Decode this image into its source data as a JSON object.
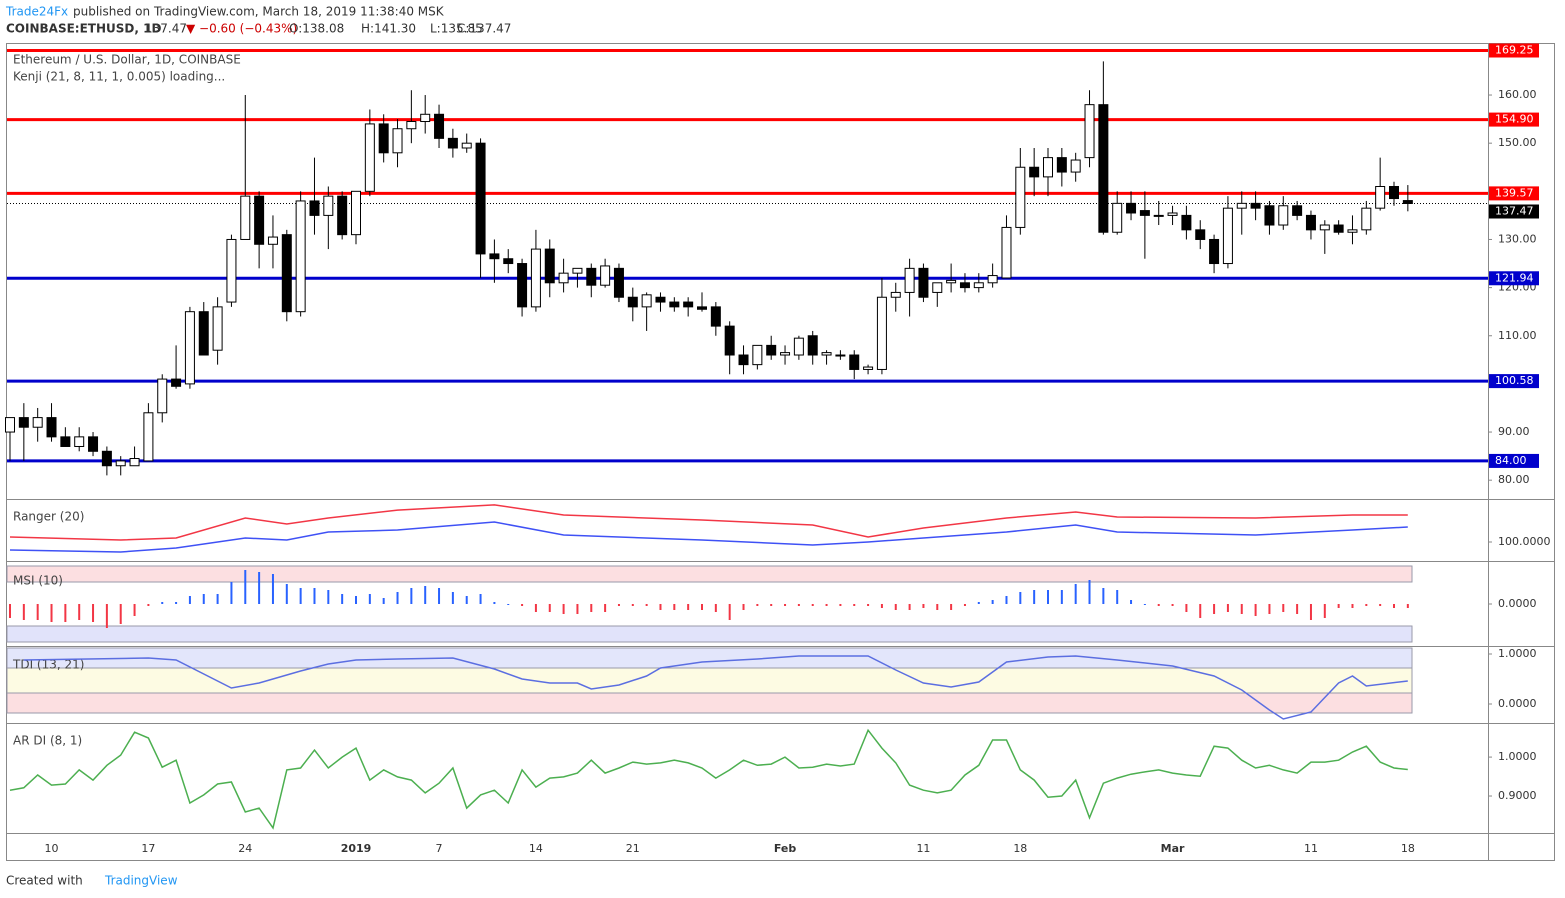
{
  "header": {
    "author": "Trade24Fx",
    "published": " published on TradingView.com, March 18, 2019 11:38:40 MSK",
    "symbol": "COINBASE:ETHUSD, 1D",
    "price": "137.47",
    "change": "▼ −0.60 (−0.43%)",
    "open": "O:138.08",
    "high": "H:141.30",
    "low": "L:135.85",
    "close": "C:137.47"
  },
  "footer": {
    "text": "Created with",
    "brand": "TradingView"
  },
  "chart_data": [
    {
      "type": "candlestick",
      "title": "Ethereum / U.S. Dollar, 1D, COINBASE",
      "subtitle": "Kenji (21, 8, 11, 1, 0.005) loading...",
      "categories": [
        null,
        null,
        null,
        "10",
        null,
        null,
        null,
        null,
        null,
        null,
        "17",
        null,
        null,
        null,
        null,
        null,
        null,
        "24",
        null,
        null,
        null,
        null,
        null,
        null,
        null,
        "2019",
        null,
        null,
        null,
        null,
        null,
        "7",
        null,
        null,
        null,
        null,
        null,
        null,
        "14",
        null,
        null,
        null,
        null,
        null,
        null,
        "21",
        null,
        null,
        null,
        null,
        null,
        null,
        null,
        null,
        null,
        null,
        "Feb",
        null,
        null,
        null,
        null,
        null,
        null,
        null,
        null,
        null,
        "11",
        null,
        null,
        null,
        null,
        null,
        null,
        "18",
        null,
        null,
        null,
        null,
        null,
        null,
        null,
        null,
        null,
        null,
        "Mar",
        null,
        null,
        null,
        null,
        null,
        null,
        null,
        null,
        null,
        "11",
        null,
        null,
        null,
        null,
        null,
        null,
        "18"
      ],
      "ohlc": [
        [
          90,
          93,
          84,
          93
        ],
        [
          93,
          96,
          84,
          91
        ],
        [
          91,
          95,
          88,
          93
        ],
        [
          93,
          96,
          88,
          89
        ],
        [
          89,
          91,
          87,
          87
        ],
        [
          87,
          91,
          86,
          89
        ],
        [
          89,
          90,
          85,
          86
        ],
        [
          86,
          87,
          81,
          83
        ],
        [
          83,
          85,
          81,
          84
        ],
        [
          83,
          87,
          83,
          84.5
        ],
        [
          84,
          96,
          84,
          94
        ],
        [
          94,
          102,
          92,
          101
        ],
        [
          101,
          108,
          99,
          99.5
        ],
        [
          100,
          116,
          99,
          115
        ],
        [
          115,
          117,
          106,
          106
        ],
        [
          107,
          118,
          104,
          116
        ],
        [
          117,
          131,
          116,
          130
        ],
        [
          130,
          160,
          130,
          139
        ],
        [
          139,
          140,
          124,
          129
        ],
        [
          129,
          135,
          124,
          130.5
        ],
        [
          131,
          132,
          113,
          115
        ],
        [
          115,
          140,
          114,
          138
        ],
        [
          138,
          147,
          131,
          135
        ],
        [
          135,
          141,
          128,
          139
        ],
        [
          139,
          140,
          130,
          131
        ],
        [
          131,
          140,
          129,
          140
        ],
        [
          140,
          157,
          139,
          154
        ],
        [
          154,
          156,
          146,
          148
        ],
        [
          148,
          155,
          145,
          153
        ],
        [
          153,
          161,
          150,
          154.5
        ],
        [
          154.5,
          160,
          152,
          156
        ],
        [
          156,
          158,
          149,
          151
        ],
        [
          151,
          153,
          147,
          149
        ],
        [
          149,
          152,
          148,
          150
        ],
        [
          150,
          151,
          122,
          127
        ],
        [
          127,
          130,
          121,
          126
        ],
        [
          126,
          128,
          123,
          125
        ],
        [
          125,
          126,
          114,
          116
        ],
        [
          116,
          132,
          115,
          128
        ],
        [
          128,
          130,
          118,
          121
        ],
        [
          121,
          126,
          119,
          123
        ],
        [
          123,
          124,
          120,
          124
        ],
        [
          124,
          125,
          118,
          120.5
        ],
        [
          120.5,
          126,
          120,
          124.5
        ],
        [
          124,
          125,
          117,
          118
        ],
        [
          118,
          120,
          113,
          116
        ],
        [
          116,
          119,
          111,
          118.5
        ],
        [
          118,
          119,
          115,
          117
        ],
        [
          117,
          118,
          115,
          116
        ],
        [
          117,
          118,
          114,
          116
        ],
        [
          116,
          119,
          115,
          115.5
        ],
        [
          116,
          117,
          110,
          112
        ],
        [
          112,
          113,
          102,
          106
        ],
        [
          106,
          108,
          102,
          104
        ],
        [
          104,
          108,
          103,
          108
        ],
        [
          108,
          110,
          105,
          106
        ],
        [
          106,
          108,
          104,
          106.5
        ],
        [
          106,
          110,
          105,
          109.5
        ],
        [
          110,
          111,
          104,
          106
        ],
        [
          106,
          107,
          104,
          106.5
        ],
        [
          106,
          107,
          105,
          106
        ],
        [
          106,
          107,
          101,
          103
        ],
        [
          103,
          104,
          102,
          103.5
        ],
        [
          103,
          122,
          102,
          118
        ],
        [
          118,
          121,
          115,
          119
        ],
        [
          119,
          126,
          114,
          124
        ],
        [
          124,
          125,
          117,
          118
        ],
        [
          119,
          121,
          116,
          121
        ],
        [
          121,
          125,
          119,
          121.5
        ],
        [
          121,
          123,
          119,
          120
        ],
        [
          120,
          123,
          119,
          121
        ],
        [
          121,
          125,
          120,
          122.5
        ],
        [
          122,
          135,
          122,
          132.5
        ],
        [
          132.5,
          149,
          131,
          145
        ],
        [
          145,
          149,
          139,
          143
        ],
        [
          143,
          149,
          139,
          147
        ],
        [
          147,
          149,
          141,
          144
        ],
        [
          144,
          148,
          142,
          146.5
        ],
        [
          147,
          161,
          145,
          158
        ],
        [
          158,
          167,
          131,
          131.5
        ],
        [
          131.5,
          140,
          131,
          137.5
        ],
        [
          137.5,
          140,
          134,
          135.5
        ],
        [
          136,
          140,
          126,
          135
        ],
        [
          135,
          138,
          133,
          135
        ],
        [
          135,
          137,
          133,
          135.5
        ],
        [
          135,
          137,
          130,
          132
        ],
        [
          132,
          134,
          128,
          130
        ],
        [
          130,
          131,
          123,
          125
        ],
        [
          125,
          139,
          124,
          136.5
        ],
        [
          136.5,
          140,
          131,
          137.5
        ],
        [
          137.5,
          140,
          134,
          136.5
        ],
        [
          137,
          138,
          131,
          133
        ],
        [
          133,
          139,
          132,
          137
        ],
        [
          137,
          138,
          134,
          135
        ],
        [
          135,
          136,
          130,
          132
        ],
        [
          132,
          134,
          127,
          133
        ],
        [
          133,
          134,
          131,
          131.5
        ],
        [
          131.5,
          135,
          129,
          132
        ],
        [
          132,
          138,
          131,
          136.5
        ],
        [
          136.5,
          147,
          136,
          141
        ],
        [
          141,
          142,
          137,
          138.5
        ],
        [
          138.08,
          141.3,
          135.85,
          137.47
        ]
      ],
      "up_color": "#ffffff",
      "down_color": "#000000",
      "ylim": [
        76.3,
        170.6
      ],
      "yticks": [
        {
          "value": 80,
          "label": "80.00"
        },
        {
          "value": 90,
          "label": "90.00"
        },
        {
          "value": 100,
          "label": "100.00"
        },
        {
          "value": 110,
          "label": "110.00"
        },
        {
          "value": 120,
          "label": "120.00"
        },
        {
          "value": 130,
          "label": "130.00"
        },
        {
          "value": 140,
          "label": "140.00"
        },
        {
          "value": 150,
          "label": "150.00"
        },
        {
          "value": 160,
          "label": "160.00"
        }
      ],
      "levels": [
        {
          "value": 169.25,
          "color": "#ff0000"
        },
        {
          "value": 154.9,
          "label": "154.90",
          "color": "#ff0000"
        },
        {
          "value": 139.57,
          "color": "#ff0000"
        },
        {
          "value": 121.94,
          "color": "#0000cc"
        },
        {
          "value": 100.58,
          "color": "#0000cc"
        },
        {
          "value": 84,
          "label": "84.00",
          "color": "#0000cc"
        }
      ],
      "last_price": 137.47
    },
    {
      "type": "line",
      "title": "Ranger (20)",
      "x": [
        0,
        8,
        12,
        17,
        20,
        23,
        28,
        35,
        40,
        50,
        58,
        62,
        66,
        72,
        77,
        80,
        90,
        97,
        101
      ],
      "series": [
        {
          "color": "#f23645",
          "values": [
            103.3,
            101.3,
            102.7,
            116,
            112,
            116,
            121.3,
            124.7,
            118,
            114.7,
            111.3,
            103.3,
            109.3,
            116,
            120,
            116.7,
            116,
            118,
            118
          ]
        },
        {
          "color": "#3f51f5",
          "values": [
            94.7,
            93.3,
            96,
            102.7,
            101.3,
            106.7,
            108,
            113.3,
            104.7,
            101.3,
            98,
            100,
            102.7,
            106.7,
            111.3,
            106.7,
            104.7,
            108,
            110
          ]
        }
      ],
      "ylim": [
        88,
        128
      ],
      "yticks": [
        {
          "value": 100,
          "label": "100.0000"
        }
      ]
    },
    {
      "type": "bar",
      "title": "MSI (10)",
      "values": [
        -0.35,
        -0.4,
        -0.4,
        -0.45,
        -0.45,
        -0.4,
        -0.45,
        -0.6,
        -0.5,
        -0.3,
        -0.05,
        0.05,
        0.05,
        0.2,
        0.25,
        0.25,
        0.55,
        0.85,
        0.8,
        0.75,
        0.5,
        0.4,
        0.4,
        0.35,
        0.25,
        0.2,
        0.25,
        0.15,
        0.3,
        0.4,
        0.45,
        0.4,
        0.3,
        0.2,
        0.25,
        0.05,
        0,
        -0.05,
        -0.2,
        -0.2,
        -0.25,
        -0.25,
        -0.2,
        -0.2,
        -0.05,
        -0.05,
        -0.05,
        -0.15,
        -0.15,
        -0.15,
        -0.15,
        -0.2,
        -0.4,
        -0.15,
        -0.05,
        -0.05,
        -0.05,
        -0.05,
        -0.05,
        -0.05,
        -0.05,
        -0.05,
        -0.05,
        -0.1,
        -0.15,
        -0.15,
        -0.1,
        -0.15,
        -0.15,
        -0.05,
        0.05,
        0.1,
        0.2,
        0.3,
        0.35,
        0.35,
        0.35,
        0.5,
        0.6,
        0.4,
        0.35,
        0.1,
        0,
        -0.05,
        -0.05,
        -0.2,
        -0.35,
        -0.25,
        -0.2,
        -0.25,
        -0.3,
        -0.25,
        -0.2,
        -0.25,
        -0.4,
        -0.35,
        -0.1,
        -0.1,
        -0.05,
        -0.05,
        -0.1,
        -0.1
      ],
      "up_color": "#2962ff",
      "down_color": "#f23645",
      "ylim": [
        -1,
        1
      ],
      "yticks": [
        {
          "value": 0,
          "label": "0.0000"
        }
      ],
      "bands": [
        {
          "from": 0.55,
          "to": 0.95,
          "color": "#fcdfe1"
        },
        {
          "from": -0.55,
          "to": -0.95,
          "color": "#e1e3fa"
        }
      ]
    },
    {
      "type": "line",
      "title": "TDI (13, 21)",
      "x": [
        1,
        10,
        12,
        16,
        18,
        21,
        23,
        25,
        28,
        32,
        35,
        37,
        39,
        41,
        42,
        44,
        46,
        47,
        50,
        54,
        57,
        62,
        64,
        66,
        68,
        70,
        72,
        75,
        77,
        80,
        84,
        87,
        89,
        91,
        92,
        94,
        96,
        97,
        98,
        101
      ],
      "series": [
        {
          "color": "#5b6ee1",
          "values": [
            0.88,
            0.92,
            0.88,
            0.32,
            0.42,
            0.66,
            0.8,
            0.88,
            0.9,
            0.92,
            0.7,
            0.5,
            0.42,
            0.42,
            0.3,
            0.38,
            0.56,
            0.72,
            0.84,
            0.9,
            0.96,
            0.96,
            0.68,
            0.42,
            0.34,
            0.44,
            0.84,
            0.94,
            0.96,
            0.88,
            0.76,
            0.56,
            0.28,
            -0.12,
            -0.3,
            -0.16,
            0.42,
            0.56,
            0.36,
            0.46
          ]
        }
      ],
      "ylim": [
        -0.36,
        1.12
      ],
      "yticks": [
        {
          "value": 1,
          "label": "1.0000"
        },
        {
          "value": 0,
          "label": "0.0000"
        }
      ],
      "bands": [
        {
          "from": 0.72,
          "to": 1.12,
          "color": "#e3e6fb"
        },
        {
          "from": 0.22,
          "to": 0.72,
          "color": "#fdfbe3"
        },
        {
          "from": -0.18,
          "to": 0.22,
          "color": "#fcdfe1"
        }
      ]
    },
    {
      "type": "line",
      "title": "AR DI (8, 1)",
      "series": [
        {
          "color": "#4caf50",
          "values": [
            0.915,
            0.921,
            0.954,
            0.928,
            0.931,
            0.967,
            0.941,
            0.979,
            1.005,
            1.064,
            1.049,
            0.974,
            0.992,
            0.882,
            0.903,
            0.931,
            0.936,
            0.859,
            0.869,
            0.818,
            0.967,
            0.972,
            1.018,
            0.972,
            1.0,
            1.023,
            0.941,
            0.967,
            0.949,
            0.941,
            0.908,
            0.933,
            0.972,
            0.869,
            0.903,
            0.915,
            0.882,
            0.967,
            0.923,
            0.946,
            0.949,
            0.959,
            0.992,
            0.959,
            0.972,
            0.987,
            0.982,
            0.985,
            0.992,
            0.985,
            0.972,
            0.946,
            0.967,
            0.992,
            0.979,
            0.982,
            1.0,
            0.972,
            0.974,
            0.982,
            0.977,
            0.982,
            1.069,
            1.023,
            0.985,
            0.928,
            0.915,
            0.908,
            0.915,
            0.954,
            0.979,
            1.044,
            1.044,
            0.967,
            0.941,
            0.897,
            0.9,
            0.941,
            0.844,
            0.933,
            0.946,
            0.956,
            0.962,
            0.967,
            0.959,
            0.954,
            0.951,
            1.028,
            1.023,
            0.992,
            0.972,
            0.979,
            0.967,
            0.959,
            0.987,
            0.987,
            0.992,
            1.013,
            1.028,
            0.987,
            0.972,
            0.968
          ]
        }
      ],
      "ylim": [
        0.805,
        1.085
      ],
      "yticks": [
        {
          "value": 1,
          "label": "1.0000"
        },
        {
          "value": 0.9,
          "label": "0.9000"
        }
      ]
    }
  ]
}
